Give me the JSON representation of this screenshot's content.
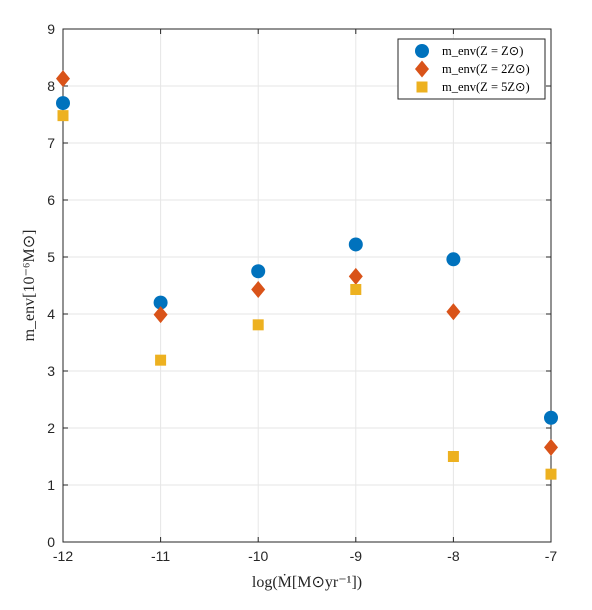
{
  "chart_data": {
    "type": "scatter",
    "title": "",
    "xlabel": "log(Ṁ[M⊙yr⁻¹])",
    "ylabel": "m_env[10⁻⁶M⊙]",
    "xlim": [
      -12,
      -7
    ],
    "ylim": [
      0,
      9
    ],
    "xticks": [
      "-12",
      "-11",
      "-10",
      "-9",
      "-8",
      "-7"
    ],
    "yticks": [
      "0",
      "1",
      "2",
      "3",
      "4",
      "5",
      "6",
      "7",
      "8",
      "9"
    ],
    "grid": true,
    "legend_position": "top-right",
    "series": [
      {
        "name": "m_env(Z = Z⊙)",
        "marker": "circle",
        "color": "#0072BD",
        "x": [
          -12,
          -11,
          -10,
          -9,
          -8,
          -7
        ],
        "y": [
          7.7,
          4.2,
          4.75,
          5.22,
          4.96,
          2.18
        ]
      },
      {
        "name": "m_env(Z = 2Z⊙)",
        "marker": "diamond",
        "color": "#D95319",
        "x": [
          -12,
          -11,
          -10,
          -9,
          -8,
          -7
        ],
        "y": [
          8.13,
          3.99,
          4.43,
          4.66,
          4.04,
          1.66
        ]
      },
      {
        "name": "m_env(Z = 5Z⊙)",
        "marker": "square",
        "color": "#EDB120",
        "x": [
          -12,
          -11,
          -10,
          -9,
          -8,
          -7
        ],
        "y": [
          7.48,
          3.19,
          3.81,
          4.43,
          1.5,
          1.19
        ]
      }
    ]
  }
}
